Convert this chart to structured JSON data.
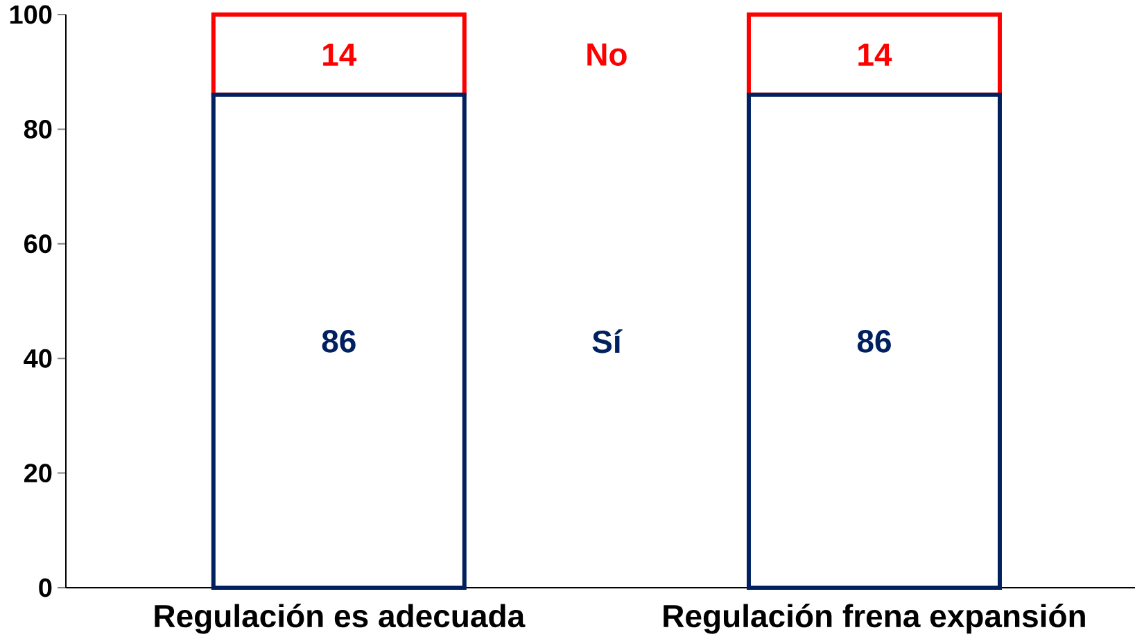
{
  "chart_data": {
    "type": "bar",
    "stacked": true,
    "data_labels": true,
    "categories": [
      "Regulación es adecuada",
      "Regulación frena expansión"
    ],
    "series": [
      {
        "name": "Sí",
        "color": "#002060",
        "values": [
          86,
          86
        ]
      },
      {
        "name": "No",
        "color": "#ff0000",
        "values": [
          14,
          14
        ]
      }
    ],
    "ylim": [
      0,
      100
    ],
    "yticks": [
      0,
      20,
      40,
      60,
      80,
      100
    ]
  }
}
